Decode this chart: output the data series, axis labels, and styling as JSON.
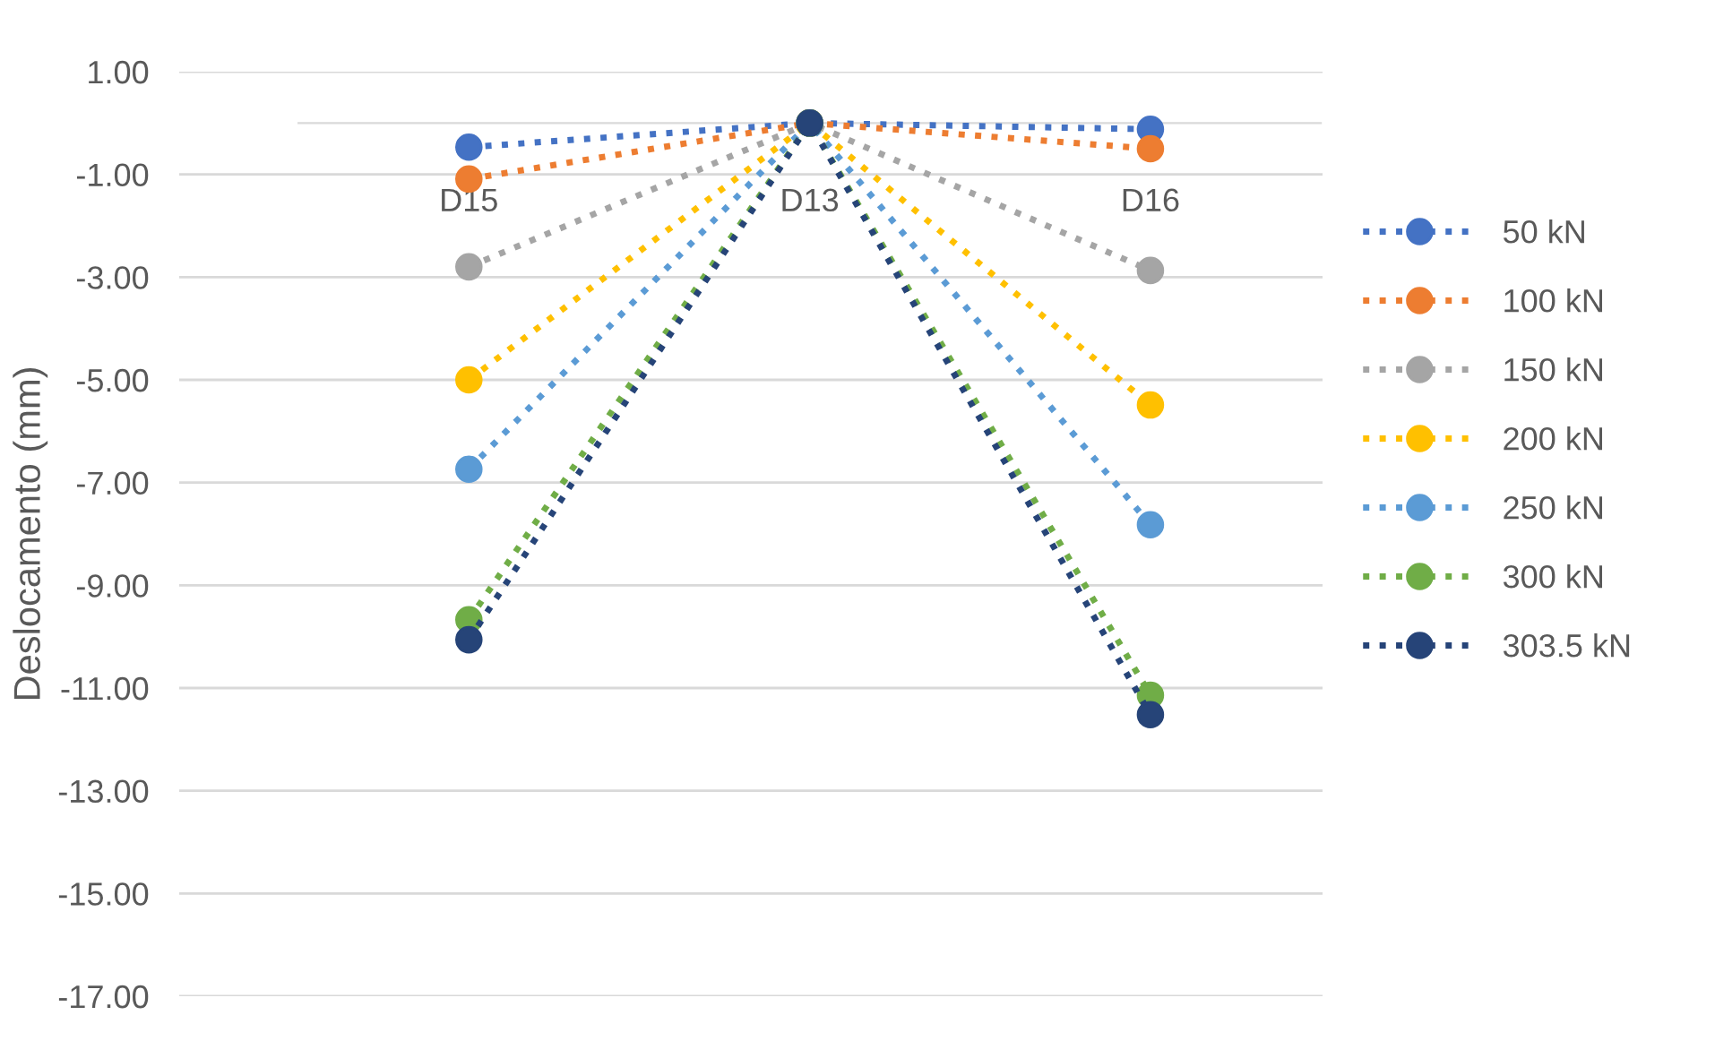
{
  "chart_data": {
    "type": "line",
    "ylabel": "Deslocamento (mm)",
    "categories": [
      "D15",
      "D13",
      "D16"
    ],
    "series": [
      {
        "name": "50 kN",
        "color": "#4472c4",
        "values": [
          -0.47,
          0,
          -0.12
        ]
      },
      {
        "name": "100 kN",
        "color": "#ed7d31",
        "values": [
          -1.09,
          0,
          -0.5
        ]
      },
      {
        "name": "150 kN",
        "color": "#a5a5a5",
        "values": [
          -2.8,
          0,
          -2.87
        ]
      },
      {
        "name": "200 kN",
        "color": "#ffc000",
        "values": [
          -5.0,
          0,
          -5.49
        ]
      },
      {
        "name": "250 kN",
        "color": "#5b9bd5",
        "values": [
          -6.74,
          0,
          -7.82
        ]
      },
      {
        "name": "300 kN",
        "color": "#70ad47",
        "values": [
          -9.67,
          0,
          -11.14
        ]
      },
      {
        "name": "303.5 kN",
        "color": "#264478",
        "values": [
          -10.06,
          0,
          -11.52
        ]
      }
    ],
    "ylim": [
      -17,
      1
    ],
    "yticks": [
      {
        "value": 1,
        "label": "1.00"
      },
      {
        "value": -1,
        "label": "-1.00"
      },
      {
        "value": -3,
        "label": "-3.00"
      },
      {
        "value": -5,
        "label": "-5.00"
      },
      {
        "value": -7,
        "label": "-7.00"
      },
      {
        "value": -9,
        "label": "-9.00"
      },
      {
        "value": -11,
        "label": "-11.00"
      },
      {
        "value": -13,
        "label": "-13.00"
      },
      {
        "value": -15,
        "label": "-15.00"
      },
      {
        "value": -17,
        "label": "-17.00"
      }
    ],
    "grid": "y",
    "legend": "right",
    "marker": "circle",
    "line_style": "dotted"
  }
}
